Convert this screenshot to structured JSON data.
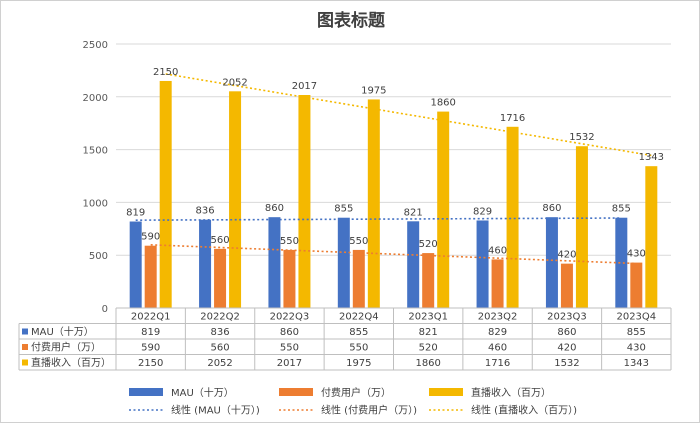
{
  "chart_data": {
    "type": "bar",
    "title": "图表标题",
    "categories": [
      "2022Q1",
      "2022Q2",
      "2022Q3",
      "2022Q4",
      "2023Q1",
      "2023Q2",
      "2023Q3",
      "2023Q4"
    ],
    "ylim": [
      0,
      2500
    ],
    "yticks": [
      0,
      500,
      1000,
      1500,
      2000,
      2500
    ],
    "grid": true,
    "series": [
      {
        "name": "MAU（十万）",
        "color": "#4472c4",
        "values": [
          819,
          836,
          860,
          855,
          821,
          829,
          860,
          855
        ]
      },
      {
        "name": "付费用户（万）",
        "color": "#ed7d31",
        "values": [
          590,
          560,
          550,
          550,
          520,
          460,
          420,
          430
        ]
      },
      {
        "name": "直播收入（百万）",
        "color": "#f4b800",
        "values": [
          2150,
          2052,
          2017,
          1975,
          1860,
          1716,
          1532,
          1343
        ]
      }
    ],
    "trendlines": [
      {
        "name": "线性 (MAU（十万）)",
        "color": "#4472c4",
        "series_index": 0
      },
      {
        "name": "线性 (付费用户（万）)",
        "color": "#ed7d31",
        "series_index": 1
      },
      {
        "name": "线性 (直播收入（百万）)",
        "color": "#f4b800",
        "series_index": 2
      }
    ],
    "data_table": true,
    "legend_position": "bottom"
  }
}
